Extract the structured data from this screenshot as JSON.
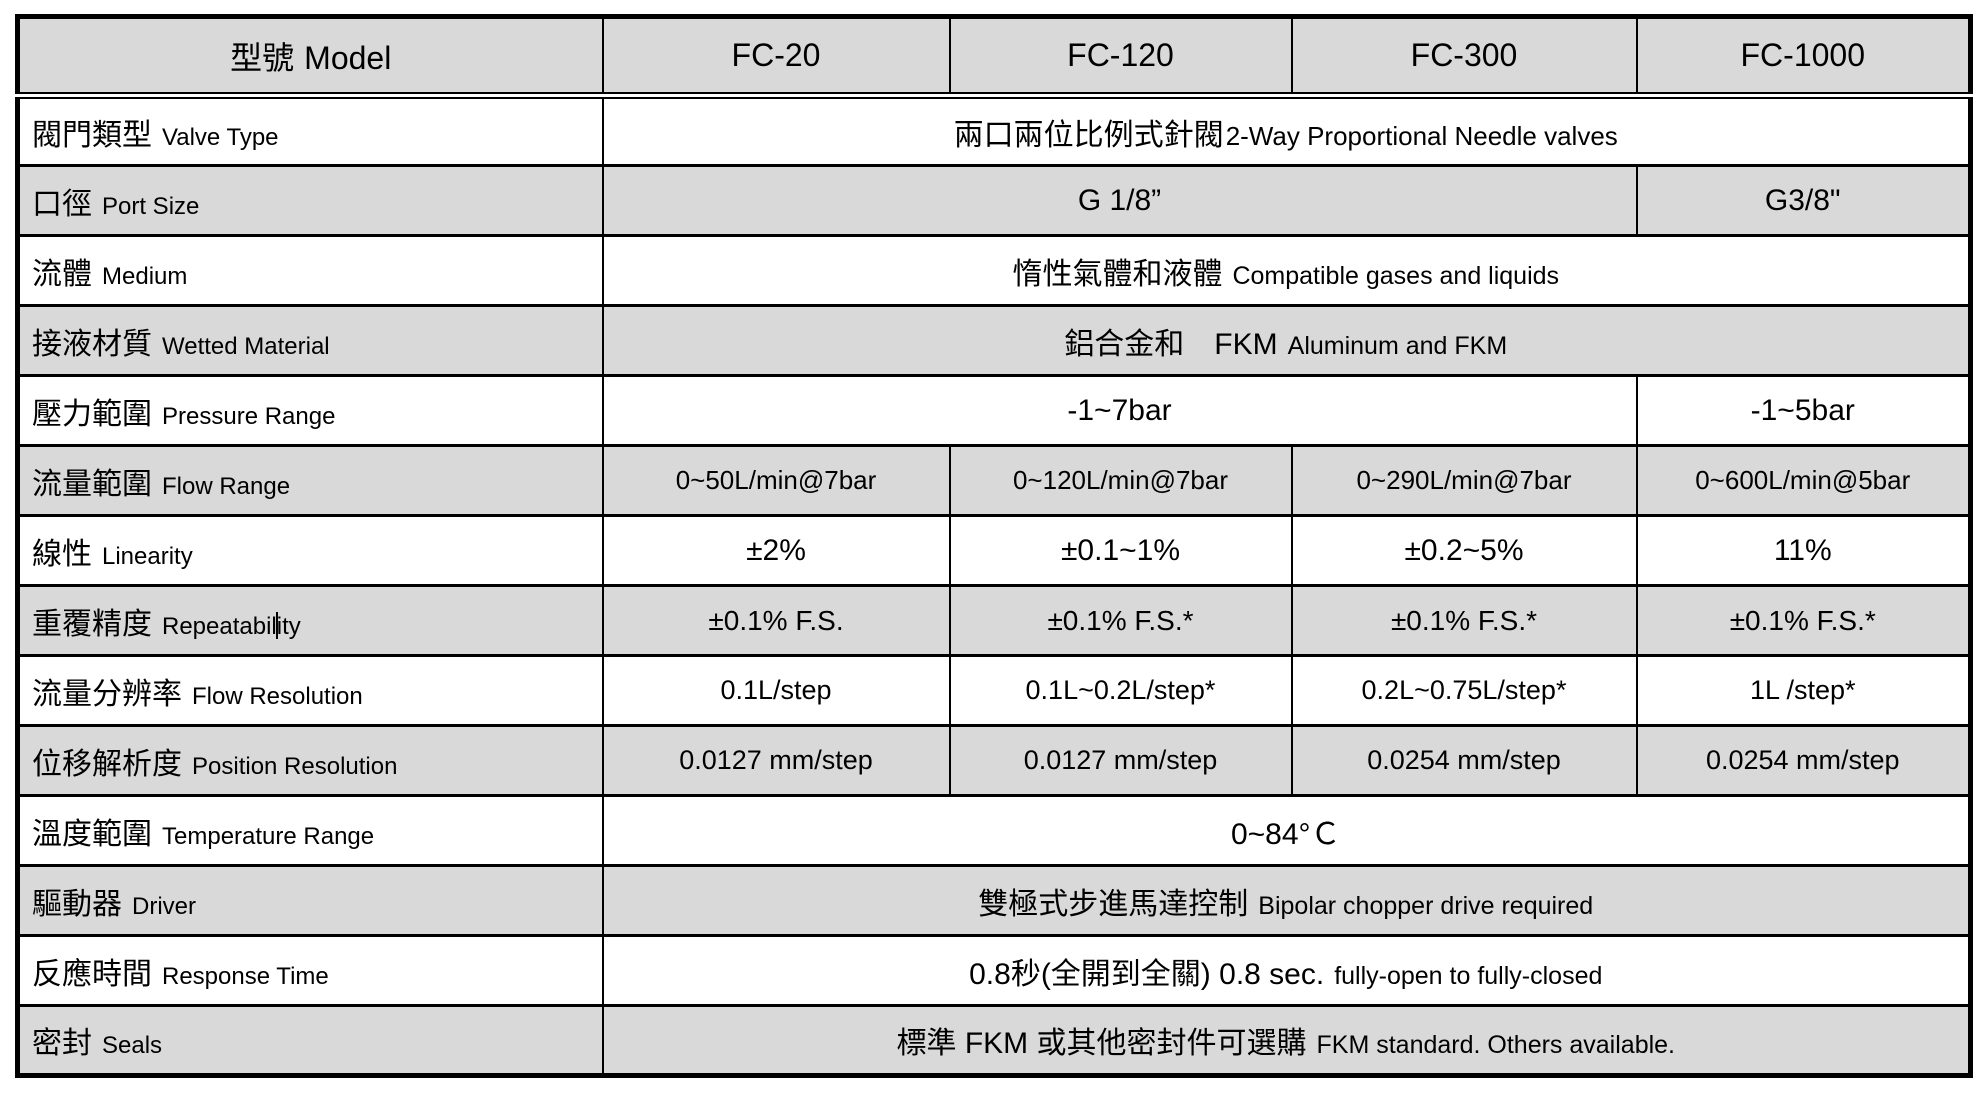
{
  "colors": {
    "shaded_row_bg": "#d9d9d9",
    "border": "#000000",
    "text": "#000000",
    "page_bg": "#ffffff"
  },
  "header": {
    "label_zh": "型號",
    "label_en": "Model",
    "models": [
      "FC-20",
      "FC-120",
      "FC-300",
      "FC-1000"
    ]
  },
  "rows": [
    {
      "id": "valve-type",
      "label_zh": "閥門類型",
      "label_en": "Valve Type",
      "cells": [
        {
          "colspan": 4,
          "zh": "兩口兩位比例式針閥",
          "en": "2-Way Proportional Needle valves"
        }
      ]
    },
    {
      "id": "port-size",
      "label_zh": "口徑",
      "label_en": "Port Size",
      "cells": [
        {
          "colspan": 3,
          "text": "G 1/8”"
        },
        {
          "colspan": 1,
          "text": "G3/8\""
        }
      ]
    },
    {
      "id": "medium",
      "label_zh": "流體",
      "label_en": "Medium",
      "cells": [
        {
          "colspan": 4,
          "zh": "惰性氣體和液體",
          "en": "Compatible gases and liquids"
        }
      ]
    },
    {
      "id": "wetted-material",
      "label_zh": "接液材質",
      "label_en": "Wetted Material",
      "cells": [
        {
          "colspan": 4,
          "zh": "鋁合金和　FKM",
          "en": "Aluminum and FKM"
        }
      ]
    },
    {
      "id": "pressure-range",
      "label_zh": "壓力範圍",
      "label_en": "Pressure Range",
      "cells": [
        {
          "colspan": 3,
          "text": "-1~7bar"
        },
        {
          "colspan": 1,
          "text": "-1~5bar"
        }
      ]
    },
    {
      "id": "flow-range",
      "label_zh": "流量範圍",
      "label_en": "Flow Range",
      "cells": [
        {
          "text": "0~50L/min@7bar"
        },
        {
          "text": "0~120L/min@7bar"
        },
        {
          "text": "0~290L/min@7bar"
        },
        {
          "text": "0~600L/min@5bar"
        }
      ]
    },
    {
      "id": "linearity",
      "label_zh": "線性",
      "label_en": "Linearity",
      "cells": [
        {
          "text": "±2%"
        },
        {
          "text": "±0.1~1%"
        },
        {
          "text": "±0.2~5%"
        },
        {
          "text": "11%"
        }
      ]
    },
    {
      "id": "repeatability",
      "label_zh": "重覆精度",
      "label_en": "Repeatability",
      "caret_index": 10,
      "cells": [
        {
          "text": "±0.1% F.S."
        },
        {
          "text": "±0.1% F.S.*"
        },
        {
          "text": "±0.1% F.S.*"
        },
        {
          "text": "±0.1% F.S.*"
        }
      ]
    },
    {
      "id": "flow-resolution",
      "label_zh": "流量分辨率",
      "label_en": "Flow Resolution",
      "cells": [
        {
          "text": "0.1L/step"
        },
        {
          "text": "0.1L~0.2L/step*"
        },
        {
          "text": "0.2L~0.75L/step*"
        },
        {
          "text": "1L /step*"
        }
      ]
    },
    {
      "id": "position-resolution",
      "label_zh": "位移解析度",
      "label_en": "Position Resolution",
      "cells": [
        {
          "text": "0.0127 mm/step"
        },
        {
          "text": "0.0127 mm/step"
        },
        {
          "text": "0.0254 mm/step"
        },
        {
          "text": "0.0254 mm/step"
        }
      ]
    },
    {
      "id": "temperature-range",
      "label_zh": "溫度範圍",
      "label_en": "Temperature Range",
      "cells": [
        {
          "colspan": 4,
          "text": "0~84°Ｃ"
        }
      ]
    },
    {
      "id": "driver",
      "label_zh": "驅動器",
      "label_en": "Driver",
      "cells": [
        {
          "colspan": 4,
          "zh": "雙極式步進馬達控制",
          "en": "Bipolar chopper drive required"
        }
      ]
    },
    {
      "id": "response-time",
      "label_zh": "反應時間",
      "label_en": "Response Time",
      "cells": [
        {
          "colspan": 4,
          "zh": "0.8秒(全開到全關) 0.8 sec.",
          "en": "fully-open to fully-closed"
        }
      ]
    },
    {
      "id": "seals",
      "label_zh": "密封",
      "label_en": "Seals",
      "cells": [
        {
          "colspan": 4,
          "zh": "標準 FKM 或其他密封件可選購",
          "en": "FKM standard. Others available."
        }
      ]
    }
  ]
}
